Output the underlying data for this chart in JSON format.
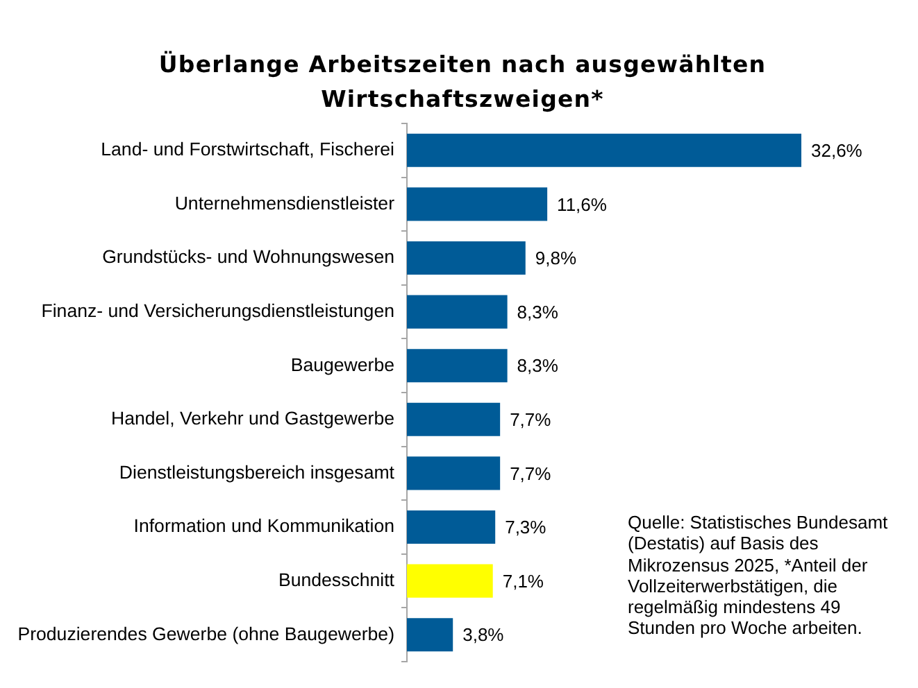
{
  "chart_data": {
    "type": "bar",
    "orientation": "horizontal",
    "title": "Überlange Arbeitszeiten nach ausgewählten Wirtschaftszweigen*",
    "categories": [
      "Land- und Forstwirtschaft, Fischerei",
      "Unternehmensdienstleister",
      "Grundstücks- und Wohnungswesen",
      "Finanz- und Versicherungsdienstleistungen",
      "Baugewerbe",
      "Handel, Verkehr und Gastgewerbe",
      "Dienstleistungsbereich insgesamt",
      "Information und Kommunikation",
      "Bundesschnitt",
      "Produzierendes Gewerbe (ohne Baugewerbe)"
    ],
    "values": [
      32.6,
      11.6,
      9.8,
      8.3,
      8.3,
      7.7,
      7.7,
      7.3,
      7.1,
      3.8
    ],
    "colors": [
      "#005b97",
      "#005b97",
      "#005b97",
      "#005b97",
      "#005b97",
      "#005b97",
      "#005b97",
      "#005b97",
      "#ffff00",
      "#005b97"
    ],
    "value_labels": [
      "32,6%",
      "11,6%",
      "9,8%",
      "8,3%",
      "8,3%",
      "7,7%",
      "7,7%",
      "7,3%",
      "7,1%",
      "3,8%"
    ],
    "tick_labels": "y",
    "grid": false,
    "legend": false,
    "annotations": [
      "Quelle: Statistisches Bundesamt (Destatis) auf Basis des Mikrozensus 2025, *Anteil der Vollzeiterwerbstätigen, die regelmäßig mindestens 49 Stunden pro Woche arbeiten."
    ]
  }
}
